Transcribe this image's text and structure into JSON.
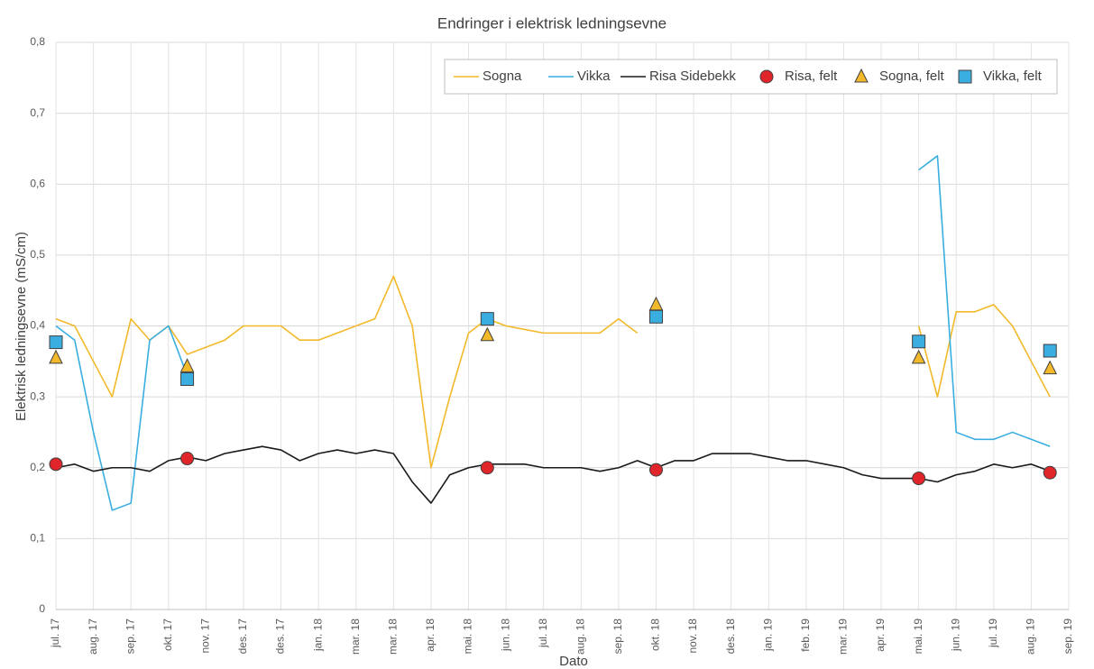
{
  "chart_data": {
    "type": "line",
    "title": "Endringer i elektrisk ledningsevne",
    "x_label": "Dato",
    "y_label": "Elektrisk ledningsevne (mS/cm)",
    "categories": [
      "jul. 17",
      null,
      "aug. 17",
      null,
      "sep. 17",
      null,
      "okt. 17",
      null,
      "nov. 17",
      null,
      "des. 17",
      null,
      "des. 17",
      null,
      "jan. 18",
      null,
      "mar. 18",
      null,
      "mar. 18",
      null,
      "apr. 18",
      null,
      "mai. 18",
      null,
      "jun. 18",
      null,
      "jul. 18",
      null,
      "aug. 18",
      null,
      "sep. 18",
      null,
      "okt. 18",
      null,
      "nov. 18",
      null,
      "des. 18",
      null,
      "jan. 19",
      null,
      "feb. 19",
      null,
      "mar. 19",
      null,
      "apr. 19",
      null,
      "mai. 19",
      null,
      "jun. 19",
      null,
      "jul. 19",
      null,
      "aug. 19",
      null,
      "sep. 19"
    ],
    "ylim": [
      0,
      0.8
    ],
    "yticks": [
      0,
      {
        "value": 0.1,
        "label": "0,1"
      },
      {
        "value": 0.2,
        "label": "0,2"
      },
      {
        "value": 0.3,
        "label": "0,3"
      },
      {
        "value": 0.4,
        "label": "0,4"
      },
      {
        "value": 0.5,
        "label": "0,5"
      },
      {
        "value": 0.6,
        "label": "0,6"
      },
      {
        "value": 0.7,
        "label": "0,7"
      },
      {
        "value": 0.8,
        "label": "0,8"
      }
    ],
    "grid": true,
    "legend": "top-right",
    "series": [
      {
        "name": "Sogna",
        "color": "#f2b92a",
        "style": "line",
        "values": [
          0.41,
          0.4,
          0.35,
          0.3,
          0.41,
          0.38,
          0.4,
          0.36,
          0.37,
          0.38,
          0.4,
          0.4,
          0.4,
          0.38,
          0.38,
          0.39,
          0.4,
          0.41,
          0.47,
          0.4,
          0.2,
          0.3,
          0.39,
          0.41,
          0.4,
          0.395,
          0.39,
          0.39,
          0.39,
          0.39,
          0.41,
          0.39,
          null,
          null,
          null,
          null,
          null,
          null,
          null,
          null,
          null,
          null,
          null,
          null,
          null,
          null,
          0.4,
          0.3,
          0.42,
          0.42,
          0.43,
          0.4,
          0.35,
          0.3,
          null
        ]
      },
      {
        "name": "Vikka",
        "color": "#3aaee0",
        "style": "line",
        "values": [
          0.4,
          0.38,
          0.25,
          0.14,
          0.15,
          0.38,
          0.4,
          0.33,
          null,
          null,
          null,
          null,
          null,
          null,
          null,
          null,
          null,
          null,
          null,
          null,
          null,
          null,
          null,
          null,
          null,
          null,
          null,
          null,
          null,
          null,
          null,
          null,
          null,
          null,
          null,
          null,
          null,
          null,
          null,
          null,
          null,
          null,
          null,
          null,
          null,
          null,
          0.62,
          0.64,
          0.25,
          0.24,
          0.24,
          0.25,
          0.24,
          0.23,
          null
        ]
      },
      {
        "name": "Risa Sidebekk",
        "color": "#1a1a1a",
        "style": "line",
        "values": [
          0.2,
          0.205,
          0.195,
          0.2,
          0.2,
          0.195,
          0.21,
          0.215,
          0.21,
          0.22,
          0.225,
          0.23,
          0.225,
          0.21,
          0.22,
          0.225,
          0.22,
          0.225,
          0.22,
          0.18,
          0.15,
          0.19,
          0.2,
          0.205,
          0.205,
          0.205,
          0.2,
          0.2,
          0.2,
          0.195,
          0.2,
          0.21,
          0.2,
          0.21,
          0.21,
          0.22,
          0.22,
          0.22,
          0.215,
          0.21,
          0.21,
          0.205,
          0.2,
          0.19,
          0.185,
          0.185,
          0.185,
          0.18,
          0.19,
          0.195,
          0.205,
          0.2,
          0.205,
          0.195,
          null
        ]
      },
      {
        "name": "Risa, felt",
        "color": "#e0262b",
        "style": "circle",
        "values": [
          0.205,
          null,
          null,
          null,
          null,
          null,
          null,
          0.213,
          null,
          null,
          null,
          null,
          null,
          null,
          null,
          null,
          null,
          null,
          null,
          null,
          null,
          null,
          null,
          0.2,
          null,
          null,
          null,
          null,
          null,
          null,
          null,
          null,
          0.197,
          null,
          null,
          null,
          null,
          null,
          null,
          null,
          null,
          null,
          null,
          null,
          null,
          null,
          0.185,
          null,
          null,
          null,
          null,
          null,
          null,
          0.193,
          null
        ]
      },
      {
        "name": "Sogna, felt",
        "color": "#f2b92a",
        "style": "triangle",
        "values": [
          0.355,
          null,
          null,
          null,
          null,
          null,
          null,
          0.343,
          null,
          null,
          null,
          null,
          null,
          null,
          null,
          null,
          null,
          null,
          null,
          null,
          null,
          null,
          null,
          0.387,
          null,
          null,
          null,
          null,
          null,
          null,
          null,
          null,
          0.43,
          null,
          null,
          null,
          null,
          null,
          null,
          null,
          null,
          null,
          null,
          null,
          null,
          null,
          0.355,
          null,
          null,
          null,
          null,
          null,
          null,
          0.34,
          null
        ]
      },
      {
        "name": "Vikka, felt",
        "color": "#3aaee0",
        "style": "square",
        "values": [
          0.377,
          null,
          null,
          null,
          null,
          null,
          null,
          0.325,
          null,
          null,
          null,
          null,
          null,
          null,
          null,
          null,
          null,
          null,
          null,
          null,
          null,
          null,
          null,
          0.41,
          null,
          null,
          null,
          null,
          null,
          null,
          null,
          null,
          0.413,
          null,
          null,
          null,
          null,
          null,
          null,
          null,
          null,
          null,
          null,
          null,
          null,
          null,
          0.378,
          null,
          null,
          null,
          null,
          null,
          null,
          0.365,
          null
        ]
      }
    ]
  }
}
